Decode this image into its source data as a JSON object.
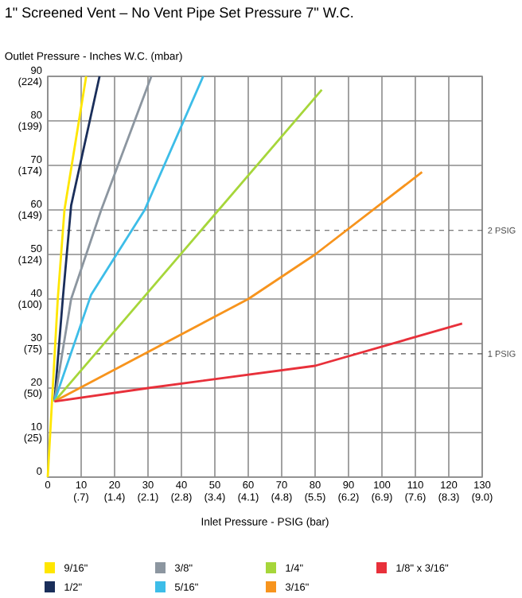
{
  "chart_data": {
    "type": "line",
    "title": "1\" Screened Vent – No Vent Pipe   Set Pressure 7\" W.C.",
    "ylabel": "Outlet Pressure - Inches W.C. (mbar)",
    "xlabel": "Inlet Pressure - PSIG (bar)",
    "xlim": [
      0,
      130
    ],
    "ylim": [
      0,
      90
    ],
    "xticks": [
      0,
      10,
      20,
      30,
      40,
      50,
      60,
      70,
      80,
      90,
      100,
      110,
      120,
      130
    ],
    "yticks": [
      0,
      10,
      20,
      30,
      40,
      50,
      60,
      70,
      80,
      90
    ],
    "x2lim": [
      0,
      8.963
    ],
    "x2ticks": [
      {
        "value": 0.689,
        "label": "(.7)"
      },
      {
        "value": 1.379,
        "label": "(1.4)"
      },
      {
        "value": 2.068,
        "label": "(2.1)"
      },
      {
        "value": 2.758,
        "label": "(2.8)"
      },
      {
        "value": 3.447,
        "label": "(3.4)"
      },
      {
        "value": 4.137,
        "label": "(4.1)"
      },
      {
        "value": 4.826,
        "label": "(4.8)"
      },
      {
        "value": 5.516,
        "label": "(5.5)"
      },
      {
        "value": 6.205,
        "label": "(6.2)"
      },
      {
        "value": 6.895,
        "label": "(6.9)"
      },
      {
        "value": 7.584,
        "label": "(7.6)"
      },
      {
        "value": 8.274,
        "label": "(8.3)"
      },
      {
        "value": 8.963,
        "label": "(9.0)"
      }
    ],
    "y2lim": [
      0,
      224.2
    ],
    "y2ticks": [
      {
        "value": 24.9,
        "label": "(25)"
      },
      {
        "value": 49.8,
        "label": "(50)"
      },
      {
        "value": 74.7,
        "label": "(75)"
      },
      {
        "value": 99.6,
        "label": "(100)"
      },
      {
        "value": 124.5,
        "label": "(124)"
      },
      {
        "value": 149.5,
        "label": "(149)"
      },
      {
        "value": 174.4,
        "label": "(174)"
      },
      {
        "value": 199.3,
        "label": "(199)"
      },
      {
        "value": 224.2,
        "label": "(224)"
      }
    ],
    "grid": true,
    "legend": "bottom",
    "marker": "none",
    "line_style": "solid",
    "ref_lines": [
      {
        "axis": "y",
        "value": 55.4,
        "label": "2 PSIG",
        "color": "#555555",
        "line_style": "dashed"
      },
      {
        "axis": "y",
        "value": 27.7,
        "label": "1 PSIG",
        "color": "#555555",
        "line_style": "dashed"
      }
    ],
    "series": [
      {
        "name": "9/16\"",
        "color": "#ffe600",
        "x": [
          0,
          3,
          5,
          11.5
        ],
        "values": [
          0,
          40,
          60,
          90
        ]
      },
      {
        "name": "1/2\"",
        "color": "#1a2e5a",
        "x": [
          2,
          4.5,
          7,
          15.5
        ],
        "values": [
          17,
          40,
          61,
          90
        ]
      },
      {
        "name": "3/8\"",
        "color": "#8c96a0",
        "x": [
          2,
          7,
          16,
          31
        ],
        "values": [
          17,
          40,
          60,
          90
        ]
      },
      {
        "name": "5/16\"",
        "color": "#3dbde8",
        "x": [
          2,
          13,
          29,
          46.5
        ],
        "values": [
          17,
          41,
          60,
          90
        ]
      },
      {
        "name": "1/4\"",
        "color": "#a6d63a",
        "x": [
          2,
          82
        ],
        "values": [
          17,
          87
        ]
      },
      {
        "name": "3/16\"",
        "color": "#f7941d",
        "x": [
          2,
          60,
          80,
          112
        ],
        "values": [
          17,
          40,
          50,
          68.5
        ]
      },
      {
        "name": "1/8\" x 3/16\"",
        "color": "#e8303a",
        "x": [
          2,
          30,
          80,
          124
        ],
        "values": [
          17,
          20,
          25,
          34.5
        ]
      }
    ]
  }
}
